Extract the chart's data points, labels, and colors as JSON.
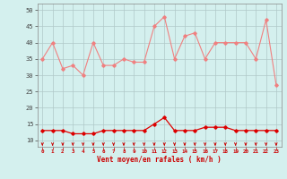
{
  "hours": [
    0,
    1,
    2,
    3,
    4,
    5,
    6,
    7,
    8,
    9,
    10,
    11,
    12,
    13,
    14,
    15,
    16,
    17,
    18,
    19,
    20,
    21,
    22,
    23
  ],
  "rafales": [
    35,
    40,
    32,
    33,
    30,
    40,
    33,
    33,
    35,
    34,
    34,
    45,
    48,
    35,
    42,
    43,
    35,
    40,
    40,
    40,
    40,
    35,
    47,
    27
  ],
  "moyen": [
    13,
    13,
    13,
    12,
    12,
    12,
    13,
    13,
    13,
    13,
    13,
    15,
    17,
    13,
    13,
    13,
    14,
    14,
    14,
    13,
    13,
    13,
    13,
    13
  ],
  "color_rafales": "#f08080",
  "color_moyen": "#dd0000",
  "bg_color": "#d4f0ee",
  "grid_color": "#b0c8c8",
  "xlabel": "Vent moyen/en rafales ( km/h )",
  "ylim_min": 8,
  "ylim_max": 52,
  "yticks": [
    10,
    15,
    20,
    25,
    30,
    35,
    40,
    45,
    50
  ],
  "arrow_color": "#cc0000",
  "tick_label_color": "#cc0000"
}
